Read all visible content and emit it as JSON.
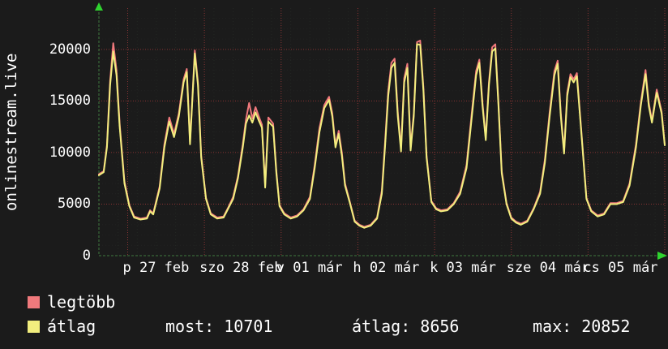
{
  "legend": [
    {
      "label": "legtöbb",
      "color": "#f0797c"
    },
    {
      "label": "átlag",
      "color": "#f2ee7e"
    }
  ],
  "stats": [
    "most: 10701",
    "átlag: 8656",
    "max: 20852"
  ],
  "chart_data": {
    "type": "line",
    "ylabel": "onlinestream.live",
    "ylim": [
      0,
      24000
    ],
    "y_ticks": [
      0,
      5000,
      10000,
      15000,
      20000
    ],
    "x_unit": "hours",
    "x_range": [
      0,
      177
    ],
    "x_day_tick_hours": [
      9,
      33,
      57,
      81,
      105,
      129,
      153,
      177
    ],
    "x_axis_labels": [
      {
        "label": "p 27 feb",
        "h": 9
      },
      {
        "label": "szo 28 feb",
        "h": 33
      },
      {
        "label": "v 01 már",
        "h": 57
      },
      {
        "label": "h 02 már",
        "h": 81
      },
      {
        "label": "k 03 már",
        "h": 105
      },
      {
        "label": "sze 04 már",
        "h": 129
      },
      {
        "label": "cs 05 már",
        "h": 153
      }
    ],
    "grid": {
      "major_color": "#8a3434",
      "minor_color": "#232823",
      "axis_color": "#3f7a3f",
      "arrow_color": "#2fd42f"
    },
    "legend_position": "bottom",
    "x_hours": [
      0,
      1.5,
      2.5,
      3.5,
      4.5,
      5.5,
      6.5,
      8,
      9.5,
      11,
      13,
      15,
      16,
      17,
      19,
      20.5,
      22,
      23.5,
      25,
      26.5,
      27.5,
      28.5,
      30,
      31,
      32,
      33.5,
      35,
      37,
      39,
      40.5,
      42,
      43.5,
      45,
      46,
      47,
      48,
      49,
      50,
      51,
      52,
      53,
      54.5,
      55.5,
      56.5,
      58,
      60,
      62,
      64,
      66,
      67.5,
      69,
      70.5,
      72,
      73,
      74,
      75,
      76,
      77,
      78.5,
      80,
      81.5,
      83,
      85,
      87,
      88.5,
      89.5,
      90.5,
      91.5,
      92.5,
      93.5,
      94.5,
      95.5,
      96.5,
      97.5,
      98.5,
      99.5,
      100.5,
      101.5,
      102.5,
      104,
      105.5,
      107,
      109,
      111,
      113,
      115,
      116.5,
      118,
      119,
      120,
      121,
      122,
      123,
      124,
      125,
      126,
      127.5,
      129,
      130.5,
      132,
      134,
      136,
      138,
      139.5,
      141,
      142.5,
      143.5,
      144.5,
      145.5,
      146.5,
      147.5,
      148.5,
      149.5,
      151,
      152.5,
      154,
      156,
      158,
      160,
      162,
      164,
      166,
      168,
      169.5,
      171,
      172,
      173,
      174.5,
      176,
      177
    ],
    "series": [
      {
        "name": "legtöbb",
        "color": "#f0797c",
        "values": [
          7900,
          8200,
          10700,
          16900,
          20600,
          18000,
          12800,
          7200,
          4900,
          3800,
          3600,
          3700,
          4400,
          4100,
          6700,
          10800,
          13400,
          11800,
          13800,
          17100,
          18100,
          11000,
          19900,
          16800,
          9700,
          5600,
          4100,
          3700,
          3800,
          4700,
          5700,
          7700,
          10800,
          13200,
          14800,
          13300,
          14400,
          13500,
          12700,
          6800,
          13400,
          12800,
          8200,
          4900,
          4100,
          3700,
          3900,
          4500,
          5700,
          8800,
          12400,
          14600,
          15400,
          13800,
          10700,
          12100,
          10000,
          7000,
          5200,
          3400,
          3000,
          2800,
          3000,
          3700,
          6300,
          10900,
          16000,
          18700,
          19100,
          13900,
          10400,
          17200,
          18600,
          10500,
          13800,
          20700,
          20852,
          16300,
          9700,
          5300,
          4600,
          4400,
          4500,
          5100,
          6200,
          8800,
          13400,
          17900,
          19000,
          14800,
          11400,
          16800,
          20200,
          20500,
          14800,
          8200,
          5100,
          3700,
          3300,
          3100,
          3400,
          4600,
          6200,
          9300,
          13900,
          17900,
          18900,
          13800,
          10100,
          15800,
          17600,
          17100,
          17700,
          11700,
          5600,
          4400,
          3900,
          4100,
          5100,
          5100,
          5300,
          7000,
          10800,
          14800,
          18000,
          14800,
          13100,
          16100,
          14000,
          10800
        ]
      },
      {
        "name": "átlag",
        "color": "#f2ee7e",
        "values": [
          7800,
          8100,
          10500,
          16500,
          19800,
          17500,
          12500,
          7000,
          4800,
          3700,
          3500,
          3600,
          4300,
          4000,
          6500,
          10500,
          13000,
          11500,
          13500,
          16800,
          17800,
          10800,
          19600,
          16500,
          9500,
          5500,
          4000,
          3600,
          3700,
          4600,
          5500,
          7500,
          10500,
          12800,
          13600,
          12900,
          13900,
          13100,
          12400,
          6600,
          13000,
          12500,
          8000,
          4800,
          4000,
          3600,
          3800,
          4400,
          5500,
          8500,
          12000,
          14300,
          15100,
          13500,
          10500,
          11800,
          9700,
          6800,
          5100,
          3300,
          2900,
          2700,
          2900,
          3600,
          6000,
          10500,
          15500,
          18200,
          18700,
          13500,
          10100,
          16800,
          18200,
          10200,
          13500,
          20500,
          20450,
          16000,
          9500,
          5200,
          4500,
          4300,
          4400,
          5000,
          6000,
          8500,
          13000,
          17500,
          18700,
          14500,
          11200,
          16500,
          19800,
          20100,
          14500,
          8000,
          5000,
          3600,
          3200,
          3000,
          3300,
          4500,
          6000,
          9000,
          13500,
          17500,
          18600,
          13500,
          9900,
          15500,
          17300,
          16800,
          17400,
          11500,
          5500,
          4300,
          3800,
          4000,
          5000,
          5000,
          5200,
          6800,
          10500,
          14500,
          17600,
          14500,
          12900,
          15800,
          13800,
          10701
        ]
      }
    ]
  }
}
